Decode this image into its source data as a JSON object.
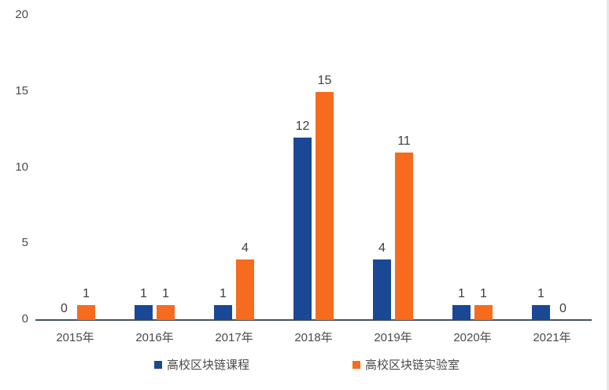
{
  "chart_data": {
    "type": "bar",
    "title": "",
    "xlabel": "",
    "ylabel": "",
    "categories": [
      "2015年",
      "2016年",
      "2017年",
      "2018年",
      "2019年",
      "2020年",
      "2021年"
    ],
    "series": [
      {
        "name": "高校区块链课程",
        "color": "#1a4895",
        "values": [
          0,
          1,
          1,
          12,
          4,
          1,
          1
        ]
      },
      {
        "name": "高校区块链实验室",
        "color": "#f76b1f",
        "values": [
          1,
          1,
          4,
          15,
          11,
          1,
          0
        ]
      }
    ],
    "ylim": [
      0,
      20
    ],
    "yticks": [
      0,
      5,
      10,
      15,
      20
    ],
    "grid": false,
    "data_labels": true,
    "legend_position": "bottom"
  },
  "legend": {
    "items": [
      {
        "label": "高校区块链课程"
      },
      {
        "label": "高校区块链实验室"
      }
    ]
  }
}
